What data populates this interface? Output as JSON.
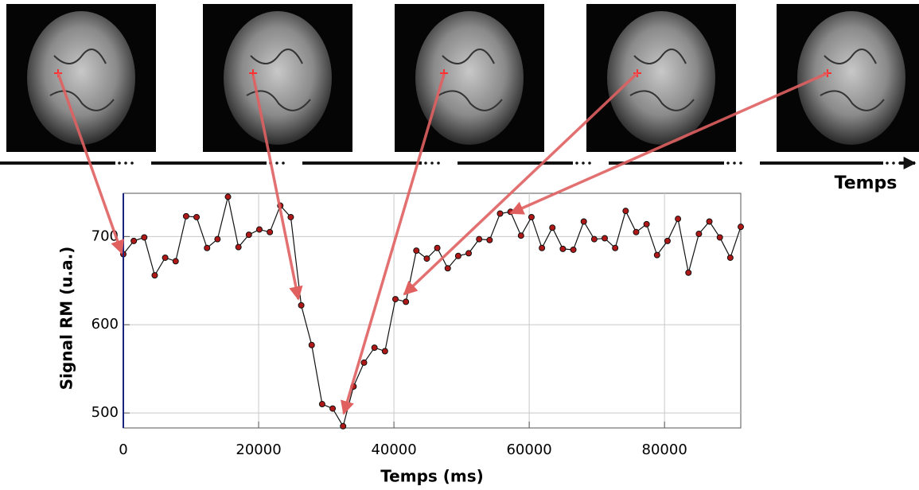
{
  "timeline_label": "Temps",
  "chart_data": {
    "type": "line",
    "x_label": "Temps (ms)",
    "y_label": "Signal RM (u.a.)",
    "x": [
      0,
      1547,
      3094,
      4641,
      6188,
      7735,
      9282,
      10829,
      12376,
      13923,
      15470,
      17017,
      18564,
      20111,
      21658,
      23205,
      24752,
      26299,
      27846,
      29393,
      30940,
      32487,
      34034,
      35581,
      37128,
      38675,
      40222,
      41769,
      43316,
      44863,
      46410,
      47957,
      49504,
      51051,
      52598,
      54145,
      55692,
      57239,
      58786,
      60333,
      61880,
      63427,
      64974,
      66521,
      68068,
      69615,
      71162,
      72709,
      74256,
      75803,
      77350,
      78897,
      80444,
      81991,
      83538,
      85085,
      86632,
      88179,
      89726,
      91273
    ],
    "values": [
      680,
      695,
      699,
      656,
      676,
      672,
      723,
      722,
      687,
      697,
      745,
      688,
      702,
      708,
      705,
      735,
      722,
      622,
      577,
      510,
      505,
      485,
      530,
      557,
      574,
      570,
      629,
      626,
      684,
      675,
      687,
      664,
      678,
      681,
      697,
      696,
      726,
      728,
      701,
      722,
      687,
      710,
      686,
      685,
      717,
      697,
      698,
      687,
      729,
      705,
      714,
      679,
      695,
      720,
      659,
      703,
      717,
      699,
      676,
      711
    ],
    "color": "#b01818",
    "xlim": [
      0,
      91273
    ],
    "xticks": [
      0,
      20000,
      40000,
      60000,
      80000
    ],
    "ylim": [
      483,
      749
    ],
    "yticks": [
      500,
      600,
      700
    ],
    "grid": true
  }
}
